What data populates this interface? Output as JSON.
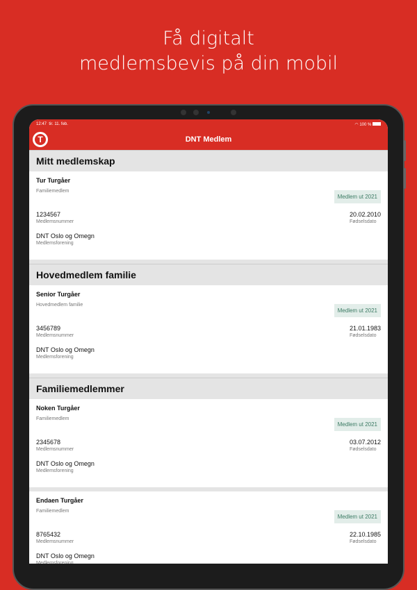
{
  "headline": {
    "line1": "Få digitalt",
    "line2": "medlemsbevis på din mobil"
  },
  "status_bar": {
    "time": "12:47",
    "date": "tir. 11. feb.",
    "battery": "100 %"
  },
  "nav": {
    "title": "DNT Medlem",
    "logo_letter": "T"
  },
  "sections": [
    {
      "title": "Mitt medlemskap",
      "members": [
        {
          "name": "Tur Turgåer",
          "role": "Familiemedlem",
          "badge": "Medlem ut 2021",
          "number": "1234567",
          "number_label": "Medlemsnummer",
          "dob": "20.02.2010",
          "dob_label": "Fødselsdato",
          "org": "DNT Oslo og Omegn",
          "org_label": "Medlemsforening"
        }
      ]
    },
    {
      "title": "Hovedmedlem familie",
      "members": [
        {
          "name": "Senior Turgåer",
          "role": "Hovedmedlem familie",
          "badge": "Medlem ut 2021",
          "number": "3456789",
          "number_label": "Medlemsnummer",
          "dob": "21.01.1983",
          "dob_label": "Fødselsdato",
          "org": "DNT Oslo og Omegn",
          "org_label": "Medlemsforening"
        }
      ]
    },
    {
      "title": "Familiemedlemmer",
      "members": [
        {
          "name": "Noken Turgåer",
          "role": "Familiemedlem",
          "badge": "Medlem ut 2021",
          "number": "2345678",
          "number_label": "Medlemsnummer",
          "dob": "03.07.2012",
          "dob_label": "Fødselsdato",
          "org": "DNT Oslo og Omegn",
          "org_label": "Medlemsforening"
        },
        {
          "name": "Endaen Turgåer",
          "role": "Familiemedlem",
          "badge": "Medlem ut 2021",
          "number": "8765432",
          "number_label": "Medlemsnummer",
          "dob": "22.10.1985",
          "dob_label": "Fødselsdato",
          "org": "DNT Oslo og Omegn",
          "org_label": "Medlemsforening"
        }
      ]
    }
  ],
  "colors": {
    "brand": "#d82d24",
    "badge_bg": "#e2ede9",
    "badge_text": "#3b7a63"
  }
}
